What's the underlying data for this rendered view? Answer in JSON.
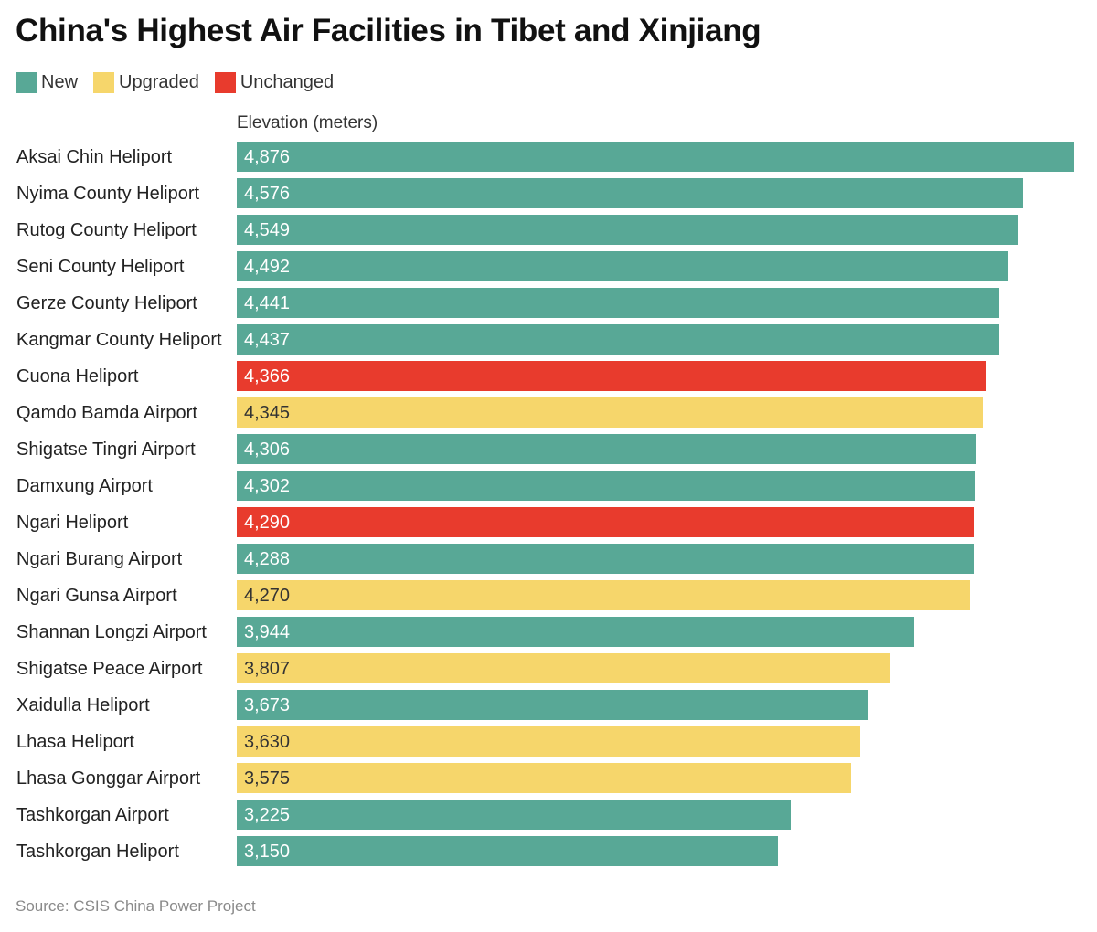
{
  "chart_data": {
    "type": "bar",
    "orientation": "horizontal",
    "title": "China's Highest Air Facilities in Tibet and Xinjiang",
    "xlabel": "Elevation (meters)",
    "ylabel": "",
    "xlim": [
      0,
      4876
    ],
    "legend": [
      {
        "name": "New",
        "color": "#58a896"
      },
      {
        "name": "Upgraded",
        "color": "#f6d66b"
      },
      {
        "name": "Unchanged",
        "color": "#e83b2d"
      }
    ],
    "categories": [
      "Aksai Chin Heliport",
      "Nyima County Heliport",
      "Rutog County Heliport",
      "Seni County Heliport",
      "Gerze County Heliport",
      "Kangmar County Heliport",
      "Cuona Heliport",
      "Qamdo Bamda Airport",
      "Shigatse Tingri Airport",
      "Damxung Airport",
      "Ngari Heliport",
      "Ngari Burang Airport",
      "Ngari Gunsa Airport",
      "Shannan Longzi Airport",
      "Shigatse Peace Airport",
      "Xaidulla Heliport",
      "Lhasa Heliport",
      "Lhasa Gonggar Airport",
      "Tashkorgan Airport",
      "Tashkorgan Heliport"
    ],
    "values": [
      4876,
      4576,
      4549,
      4492,
      4441,
      4437,
      4366,
      4345,
      4306,
      4302,
      4290,
      4288,
      4270,
      3944,
      3807,
      3673,
      3630,
      3575,
      3225,
      3150
    ],
    "labels": [
      "4,876",
      "4,576",
      "4,549",
      "4,492",
      "4,441",
      "4,437",
      "4,366",
      "4,345",
      "4,306",
      "4,302",
      "4,290",
      "4,288",
      "4,270",
      "3,944",
      "3,807",
      "3,673",
      "3,630",
      "3,575",
      "3,225",
      "3,150"
    ],
    "status": [
      "New",
      "New",
      "New",
      "New",
      "New",
      "New",
      "Unchanged",
      "Upgraded",
      "New",
      "New",
      "Unchanged",
      "New",
      "Upgraded",
      "New",
      "Upgraded",
      "New",
      "Upgraded",
      "Upgraded",
      "New",
      "New"
    ],
    "source": "Source: CSIS China Power Project"
  }
}
